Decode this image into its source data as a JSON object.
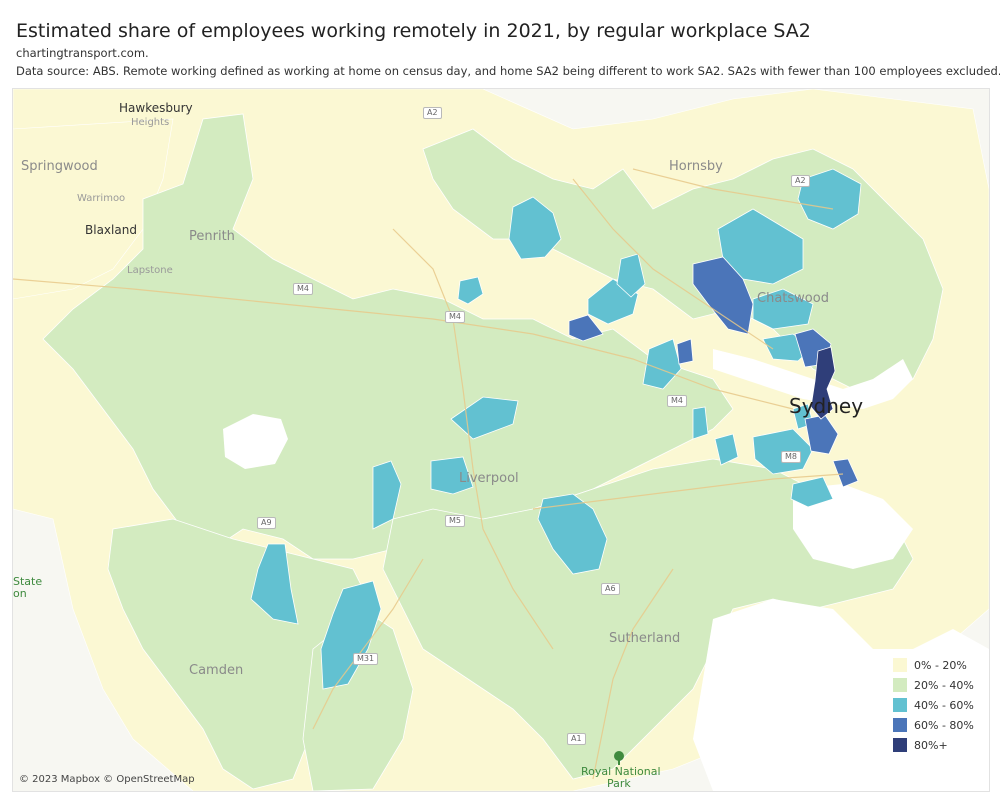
{
  "header": {
    "title": "Estimated share of employees working remotely in 2021, by regular workplace SA2",
    "source_site": "chartingtransport.com.",
    "note": "Data source: ABS. Remote working defined as working at home on census day, and home SA2 being different to work SA2. SA2s with fewer than 100 employees excluded."
  },
  "map": {
    "attribution": "© 2023 Mapbox © OpenStreetMap",
    "places": {
      "hawkesbury": "Hawkesbury",
      "heights": "Heights",
      "springwood": "Springwood",
      "warrimoo": "Warrimoo",
      "blaxland": "Blaxland",
      "penrith": "Penrith",
      "lapstone": "Lapstone",
      "hornsby": "Hornsby",
      "chatswood": "Chatswood",
      "sydney": "Sydney",
      "liverpool": "Liverpool",
      "camden": "Camden",
      "sutherland": "Sutherland",
      "state": "State",
      "on": "on",
      "royal_national": "Royal National",
      "park": "Park"
    },
    "roads": {
      "a2_top": "A2",
      "a2_east": "A2",
      "m4_west": "M4",
      "m4_mid": "M4",
      "m4_east": "M4",
      "a9": "A9",
      "m5": "M5",
      "a6": "A6",
      "m8": "M8",
      "m31": "M31",
      "a1": "A1"
    },
    "colors": {
      "c0": "#fbf8d3",
      "c1": "#d3ebc0",
      "c2": "#62c1d1",
      "c3": "#4b75b9",
      "c4": "#2f3e79",
      "water": "#ffffff",
      "land": "#f7f7f2"
    }
  },
  "legend": {
    "items": [
      {
        "label": "0% - 20%",
        "color": "#fbf8d3"
      },
      {
        "label": "20% - 40%",
        "color": "#d3ebc0"
      },
      {
        "label": "40% - 60%",
        "color": "#62c1d1"
      },
      {
        "label": "60% - 80%",
        "color": "#4b75b9"
      },
      {
        "label": "80%+",
        "color": "#2f3e79"
      }
    ]
  }
}
